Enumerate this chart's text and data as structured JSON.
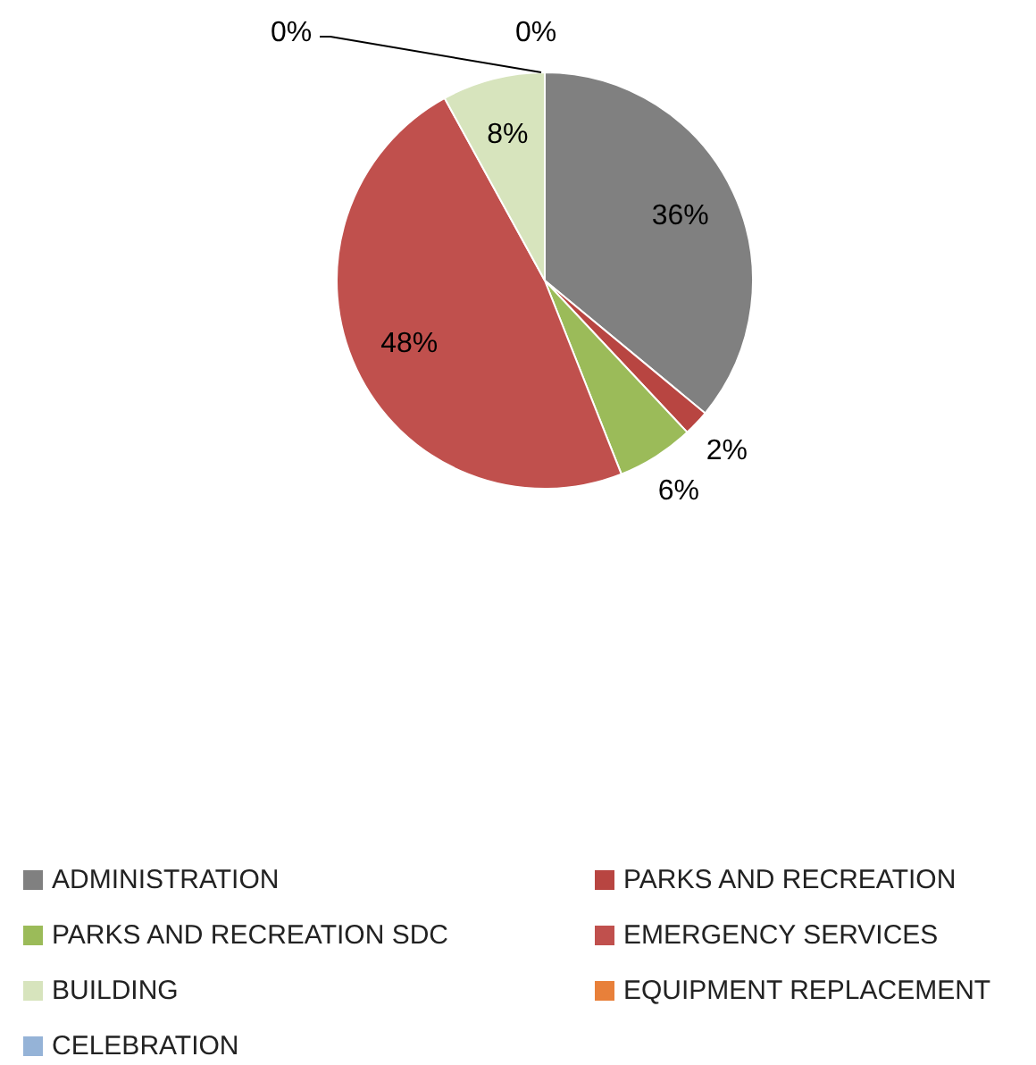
{
  "chart_data": {
    "type": "pie",
    "categories": [
      "ADMINISTRATION",
      "PARKS AND RECREATION",
      "PARKS AND RECREATION SDC",
      "EMERGENCY SERVICES",
      "BUILDING",
      "EQUIPMENT REPLACEMENT",
      "CELEBRATION"
    ],
    "values": [
      36,
      2,
      6,
      48,
      8,
      0,
      0
    ],
    "colors": [
      "#808080",
      "#b84541",
      "#9bbb59",
      "#c0504d",
      "#d7e4bd",
      "#e8803a",
      "#95b3d7"
    ],
    "value_labels": [
      "36%",
      "2%",
      "6%",
      "48%",
      "8%",
      "0%",
      "0%"
    ],
    "legend": "bottom"
  }
}
